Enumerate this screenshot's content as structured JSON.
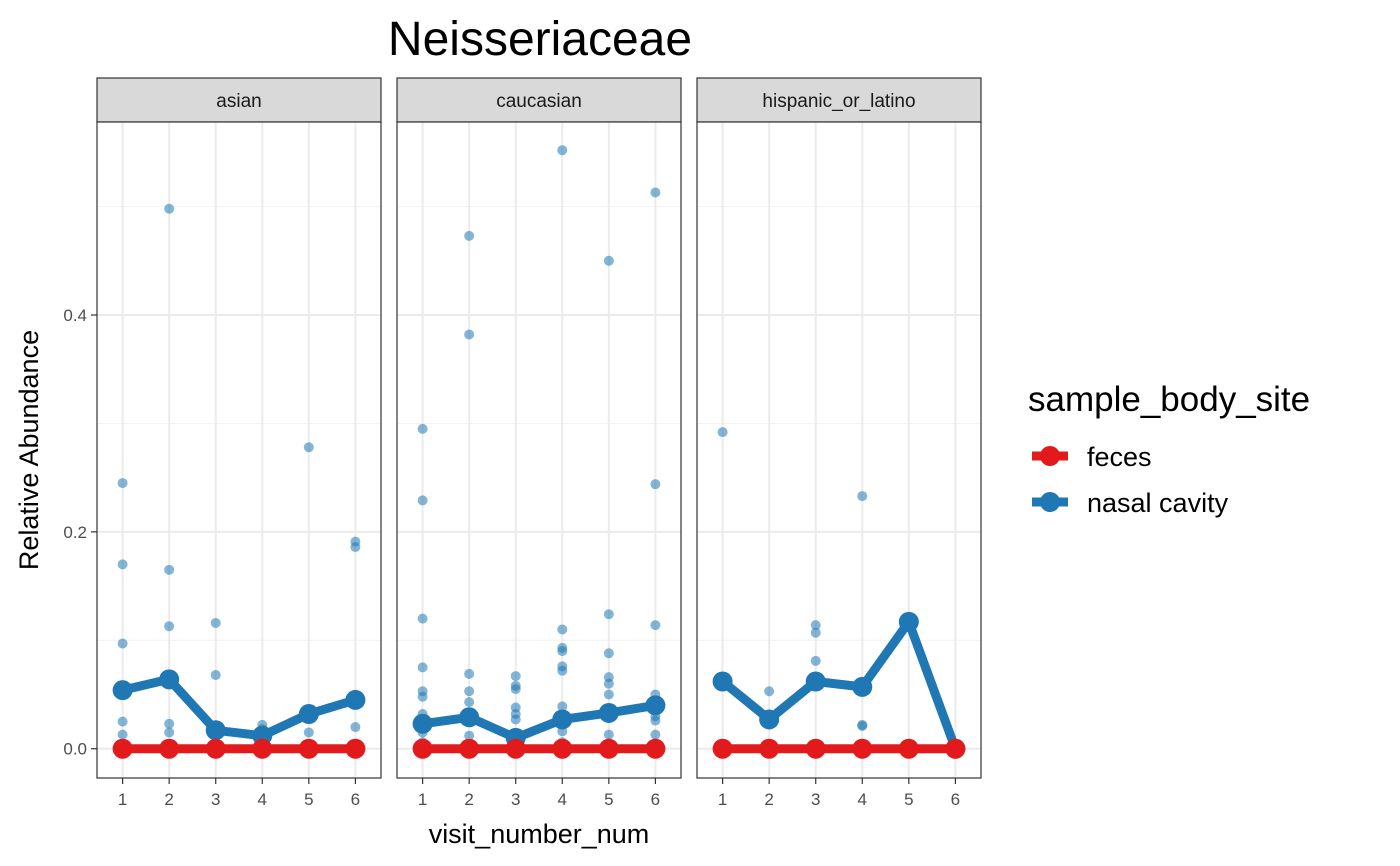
{
  "chart_data": {
    "type": "line",
    "title": "Neisseriaceae",
    "xlabel": "visit_number_num",
    "ylabel": "Relative Abundance",
    "x_ticks": [
      1,
      2,
      3,
      4,
      5,
      6
    ],
    "y_ticks": [
      0.0,
      0.2,
      0.4
    ],
    "y_tick_labels": [
      "0.0",
      "0.2",
      "0.4"
    ],
    "ylim": [
      -0.027,
      0.578
    ],
    "xlim": [
      0.45,
      6.55
    ],
    "grid": true,
    "legend": {
      "title": "sample_body_site",
      "placement": "right",
      "entries": [
        "feces",
        "nasal cavity"
      ]
    },
    "colors": {
      "feces": "#e31a1c",
      "nasal cavity": "#1f78b4"
    },
    "facets": [
      {
        "label": "asian",
        "series": [
          {
            "name": "feces",
            "x": [
              1,
              2,
              3,
              4,
              5,
              6
            ],
            "values": [
              0,
              0,
              0,
              0,
              0,
              0
            ]
          },
          {
            "name": "nasal cavity",
            "x": [
              1,
              2,
              3,
              4,
              5,
              6
            ],
            "values": [
              0.054,
              0.064,
              0.017,
              0.012,
              0.032,
              0.045
            ]
          }
        ],
        "points": {
          "nasal cavity": [
            [
              1,
              0.245
            ],
            [
              1,
              0.17
            ],
            [
              1,
              0.097
            ],
            [
              1,
              0.056
            ],
            [
              1,
              0.025
            ],
            [
              1,
              0.013
            ],
            [
              1,
              0.0
            ],
            [
              2,
              0.498
            ],
            [
              2,
              0.165
            ],
            [
              2,
              0.113
            ],
            [
              2,
              0.064
            ],
            [
              2,
              0.023
            ],
            [
              2,
              0.015
            ],
            [
              2,
              0.0
            ],
            [
              3,
              0.116
            ],
            [
              3,
              0.068
            ],
            [
              3,
              0.017
            ],
            [
              3,
              0.0
            ],
            [
              4,
              0.022
            ],
            [
              4,
              0.018
            ],
            [
              4,
              0.012
            ],
            [
              4,
              0.0
            ],
            [
              5,
              0.278
            ],
            [
              5,
              0.035
            ],
            [
              5,
              0.029
            ],
            [
              5,
              0.015
            ],
            [
              5,
              0.0
            ],
            [
              6,
              0.191
            ],
            [
              6,
              0.186
            ],
            [
              6,
              0.045
            ],
            [
              6,
              0.02
            ],
            [
              6,
              0.0
            ]
          ],
          "feces": [
            [
              1,
              0
            ],
            [
              2,
              0
            ],
            [
              3,
              0
            ],
            [
              4,
              0
            ],
            [
              5,
              0
            ],
            [
              6,
              0
            ]
          ]
        }
      },
      {
        "label": "caucasian",
        "series": [
          {
            "name": "feces",
            "x": [
              1,
              2,
              3,
              4,
              5,
              6
            ],
            "values": [
              0,
              0,
              0,
              0,
              0,
              0
            ]
          },
          {
            "name": "nasal cavity",
            "x": [
              1,
              2,
              3,
              4,
              5,
              6
            ],
            "values": [
              0.023,
              0.029,
              0.01,
              0.027,
              0.033,
              0.04
            ]
          }
        ],
        "points": {
          "nasal cavity": [
            [
              1,
              0.295
            ],
            [
              1,
              0.229
            ],
            [
              1,
              0.12
            ],
            [
              1,
              0.075
            ],
            [
              1,
              0.053
            ],
            [
              1,
              0.048
            ],
            [
              1,
              0.032
            ],
            [
              1,
              0.025
            ],
            [
              1,
              0.015
            ],
            [
              1,
              0.006
            ],
            [
              1,
              0.002
            ],
            [
              2,
              0.473
            ],
            [
              2,
              0.382
            ],
            [
              2,
              0.069
            ],
            [
              2,
              0.053
            ],
            [
              2,
              0.043
            ],
            [
              2,
              0.029
            ],
            [
              2,
              0.012
            ],
            [
              2,
              0.004
            ],
            [
              3,
              0.067
            ],
            [
              3,
              0.058
            ],
            [
              3,
              0.055
            ],
            [
              3,
              0.038
            ],
            [
              3,
              0.032
            ],
            [
              3,
              0.027
            ],
            [
              3,
              0.01
            ],
            [
              3,
              0.002
            ],
            [
              4,
              0.552
            ],
            [
              4,
              0.11
            ],
            [
              4,
              0.093
            ],
            [
              4,
              0.09
            ],
            [
              4,
              0.076
            ],
            [
              4,
              0.072
            ],
            [
              4,
              0.039
            ],
            [
              4,
              0.027
            ],
            [
              4,
              0.016
            ],
            [
              4,
              0.006
            ],
            [
              5,
              0.45
            ],
            [
              5,
              0.124
            ],
            [
              5,
              0.088
            ],
            [
              5,
              0.066
            ],
            [
              5,
              0.06
            ],
            [
              5,
              0.05
            ],
            [
              5,
              0.033
            ],
            [
              5,
              0.013
            ],
            [
              5,
              0.005
            ],
            [
              6,
              0.513
            ],
            [
              6,
              0.244
            ],
            [
              6,
              0.114
            ],
            [
              6,
              0.05
            ],
            [
              6,
              0.04
            ],
            [
              6,
              0.03
            ],
            [
              6,
              0.026
            ],
            [
              6,
              0.013
            ],
            [
              6,
              0.005
            ]
          ],
          "feces": [
            [
              1,
              0
            ],
            [
              2,
              0
            ],
            [
              3,
              0
            ],
            [
              4,
              0
            ],
            [
              5,
              0
            ],
            [
              6,
              0
            ]
          ]
        }
      },
      {
        "label": "hispanic_or_latino",
        "series": [
          {
            "name": "feces",
            "x": [
              1,
              2,
              3,
              4,
              5,
              6
            ],
            "values": [
              0,
              0,
              0,
              0,
              0,
              0
            ]
          },
          {
            "name": "nasal cavity",
            "x": [
              1,
              2,
              3,
              4,
              5,
              6
            ],
            "values": [
              0.062,
              0.027,
              0.062,
              0.057,
              0.117,
              0.0
            ]
          }
        ],
        "points": {
          "nasal cavity": [
            [
              1,
              0.292
            ],
            [
              1,
              0.062
            ],
            [
              1,
              0.003
            ],
            [
              2,
              0.053
            ],
            [
              2,
              0.027
            ],
            [
              2,
              0.0
            ],
            [
              3,
              0.114
            ],
            [
              3,
              0.107
            ],
            [
              3,
              0.081
            ],
            [
              3,
              0.062
            ],
            [
              3,
              0.004
            ],
            [
              4,
              0.233
            ],
            [
              4,
              0.057
            ],
            [
              4,
              0.022
            ],
            [
              4,
              0.021
            ],
            [
              4,
              0.0
            ],
            [
              5,
              0.117
            ],
            [
              6,
              0.0
            ]
          ],
          "feces": [
            [
              1,
              0
            ],
            [
              2,
              0
            ],
            [
              3,
              0
            ],
            [
              4,
              0
            ],
            [
              5,
              0
            ],
            [
              6,
              0
            ]
          ]
        }
      }
    ]
  }
}
